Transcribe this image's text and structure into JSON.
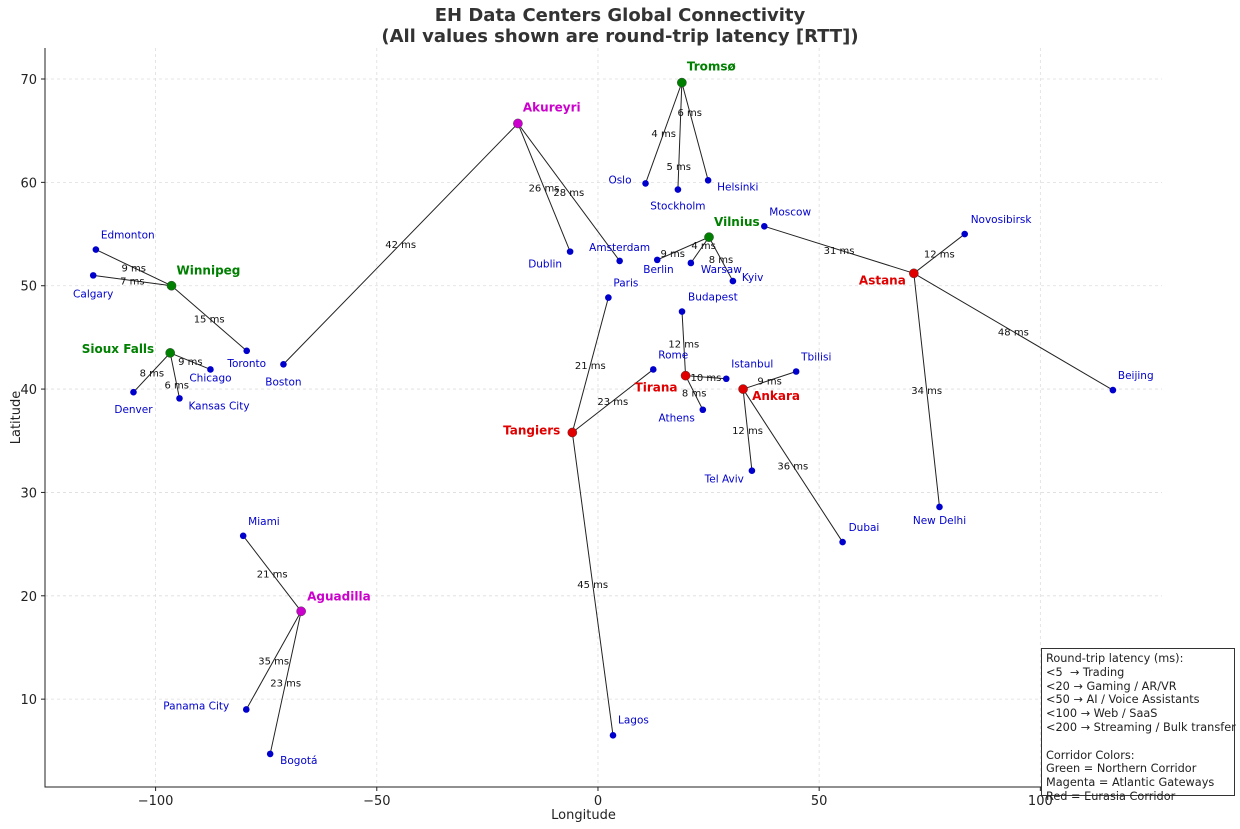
{
  "chart_data": {
    "type": "scatter",
    "title_line1": "EH Data Centers Global Connectivity",
    "title_line2": "(All values shown are round-trip latency [RTT])",
    "xlabel": "Longitude",
    "ylabel": "Latitude",
    "xlim": [
      -125,
      127.5
    ],
    "ylim": [
      1.5,
      73
    ],
    "xticks": [
      -100,
      -50,
      0,
      50,
      100
    ],
    "xtick_labels": [
      "−100",
      "−50",
      "0",
      "50",
      "100"
    ],
    "yticks": [
      10,
      20,
      30,
      40,
      50,
      60,
      70
    ],
    "ytick_labels": [
      "10",
      "20",
      "30",
      "40",
      "50",
      "60",
      "70"
    ],
    "grid": true,
    "colors": {
      "Northern Corridor": "#008000",
      "Atlantic Gateways": "#cc00cc",
      "Eurasia Corridor": "#e00000",
      "leaf": "#0000cc",
      "edge": "#222222"
    },
    "hubs": [
      {
        "name": "Tromsø",
        "lon": 18.96,
        "lat": 69.65,
        "corridor": "Northern Corridor"
      },
      {
        "name": "Vilnius",
        "lon": 25.1,
        "lat": 54.7,
        "corridor": "Northern Corridor"
      },
      {
        "name": "Winnipeg",
        "lon": -96.4,
        "lat": 50.0,
        "corridor": "Northern Corridor"
      },
      {
        "name": "Sioux Falls",
        "lon": -96.7,
        "lat": 43.5,
        "corridor": "Northern Corridor"
      },
      {
        "name": "Akureyri",
        "lon": -18.1,
        "lat": 65.7,
        "corridor": "Atlantic Gateways"
      },
      {
        "name": "Aguadilla",
        "lon": -67.1,
        "lat": 18.5,
        "corridor": "Atlantic Gateways"
      },
      {
        "name": "Astana",
        "lon": 71.4,
        "lat": 51.2,
        "corridor": "Eurasia Corridor"
      },
      {
        "name": "Tirana",
        "lon": 19.8,
        "lat": 41.3,
        "corridor": "Eurasia Corridor"
      },
      {
        "name": "Ankara",
        "lon": 32.8,
        "lat": 40.0,
        "corridor": "Eurasia Corridor"
      },
      {
        "name": "Tangiers",
        "lon": -5.8,
        "lat": 35.8,
        "corridor": "Eurasia Corridor"
      }
    ],
    "cities": [
      {
        "name": "Oslo",
        "lon": 10.75,
        "lat": 59.9
      },
      {
        "name": "Stockholm",
        "lon": 18.07,
        "lat": 59.3
      },
      {
        "name": "Helsinki",
        "lon": 24.9,
        "lat": 60.2
      },
      {
        "name": "Dublin",
        "lon": -6.3,
        "lat": 53.3
      },
      {
        "name": "Amsterdam",
        "lon": 4.9,
        "lat": 52.4
      },
      {
        "name": "Paris",
        "lon": 2.35,
        "lat": 48.85
      },
      {
        "name": "Berlin",
        "lon": 13.4,
        "lat": 52.5
      },
      {
        "name": "Warsaw",
        "lon": 21.0,
        "lat": 52.2
      },
      {
        "name": "Kyiv",
        "lon": 30.5,
        "lat": 50.45
      },
      {
        "name": "Moscow",
        "lon": 37.6,
        "lat": 55.75
      },
      {
        "name": "Novosibirsk",
        "lon": 82.9,
        "lat": 55.0
      },
      {
        "name": "Beijing",
        "lon": 116.4,
        "lat": 39.9
      },
      {
        "name": "New Delhi",
        "lon": 77.2,
        "lat": 28.6
      },
      {
        "name": "Budapest",
        "lon": 19.0,
        "lat": 47.5
      },
      {
        "name": "Rome",
        "lon": 12.5,
        "lat": 41.9
      },
      {
        "name": "Istanbul",
        "lon": 29.0,
        "lat": 41.0
      },
      {
        "name": "Athens",
        "lon": 23.7,
        "lat": 38.0
      },
      {
        "name": "Tbilisi",
        "lon": 44.8,
        "lat": 41.7
      },
      {
        "name": "Tel Aviv",
        "lon": 34.8,
        "lat": 32.1
      },
      {
        "name": "Dubai",
        "lon": 55.3,
        "lat": 25.2
      },
      {
        "name": "Lagos",
        "lon": 3.4,
        "lat": 6.5
      },
      {
        "name": "Edmonton",
        "lon": -113.5,
        "lat": 53.5
      },
      {
        "name": "Calgary",
        "lon": -114.1,
        "lat": 51.0
      },
      {
        "name": "Toronto",
        "lon": -79.4,
        "lat": 43.7
      },
      {
        "name": "Chicago",
        "lon": -87.6,
        "lat": 41.9
      },
      {
        "name": "Denver",
        "lon": -105.0,
        "lat": 39.7
      },
      {
        "name": "Kansas City",
        "lon": -94.6,
        "lat": 39.1
      },
      {
        "name": "Boston",
        "lon": -71.1,
        "lat": 42.4
      },
      {
        "name": "Miami",
        "lon": -80.2,
        "lat": 25.8
      },
      {
        "name": "Panama City",
        "lon": -79.5,
        "lat": 9.0
      },
      {
        "name": "Bogotá",
        "lon": -74.1,
        "lat": 4.7
      }
    ],
    "links": [
      {
        "from": "Tromsø",
        "to": "Oslo",
        "rtt_ms": 4
      },
      {
        "from": "Tromsø",
        "to": "Stockholm",
        "rtt_ms": 5
      },
      {
        "from": "Tromsø",
        "to": "Helsinki",
        "rtt_ms": 6
      },
      {
        "from": "Akureyri",
        "to": "Dublin",
        "rtt_ms": 26
      },
      {
        "from": "Akureyri",
        "to": "Amsterdam",
        "rtt_ms": 28
      },
      {
        "from": "Akureyri",
        "to": "Boston",
        "rtt_ms": 42
      },
      {
        "from": "Vilnius",
        "to": "Berlin",
        "rtt_ms": 9
      },
      {
        "from": "Vilnius",
        "to": "Warsaw",
        "rtt_ms": 4
      },
      {
        "from": "Vilnius",
        "to": "Kyiv",
        "rtt_ms": 8
      },
      {
        "from": "Winnipeg",
        "to": "Edmonton",
        "rtt_ms": 9
      },
      {
        "from": "Winnipeg",
        "to": "Calgary",
        "rtt_ms": 7
      },
      {
        "from": "Winnipeg",
        "to": "Toronto",
        "rtt_ms": 15
      },
      {
        "from": "Sioux Falls",
        "to": "Denver",
        "rtt_ms": 8
      },
      {
        "from": "Sioux Falls",
        "to": "Kansas City",
        "rtt_ms": 6
      },
      {
        "from": "Sioux Falls",
        "to": "Chicago",
        "rtt_ms": 9
      },
      {
        "from": "Astana",
        "to": "Moscow",
        "rtt_ms": 31
      },
      {
        "from": "Astana",
        "to": "Novosibirsk",
        "rtt_ms": 12
      },
      {
        "from": "Astana",
        "to": "Beijing",
        "rtt_ms": 48
      },
      {
        "from": "Astana",
        "to": "New Delhi",
        "rtt_ms": 34
      },
      {
        "from": "Tirana",
        "to": "Budapest",
        "rtt_ms": 12
      },
      {
        "from": "Tirana",
        "to": "Istanbul",
        "rtt_ms": 10
      },
      {
        "from": "Tirana",
        "to": "Athens",
        "rtt_ms": 8
      },
      {
        "from": "Ankara",
        "to": "Tbilisi",
        "rtt_ms": 9
      },
      {
        "from": "Ankara",
        "to": "Tel Aviv",
        "rtt_ms": 12
      },
      {
        "from": "Ankara",
        "to": "Dubai",
        "rtt_ms": 36
      },
      {
        "from": "Tangiers",
        "to": "Paris",
        "rtt_ms": 21
      },
      {
        "from": "Tangiers",
        "to": "Rome",
        "rtt_ms": 23
      },
      {
        "from": "Tangiers",
        "to": "Lagos",
        "rtt_ms": 45
      },
      {
        "from": "Aguadilla",
        "to": "Miami",
        "rtt_ms": 21
      },
      {
        "from": "Aguadilla",
        "to": "Panama City",
        "rtt_ms": 35
      },
      {
        "from": "Aguadilla",
        "to": "Bogotá",
        "rtt_ms": 23
      }
    ],
    "link_label_suffix": " ms",
    "legend": {
      "placement": "lower-right",
      "lines": [
        "Round-trip latency (ms):",
        "<5  → Trading",
        "<20 → Gaming / AR/VR",
        "<50 → AI / Voice Assistants",
        "<100 → Web / SaaS",
        "<200 → Streaming / Bulk transfer",
        "",
        "Corridor Colors:",
        "Green = Northern Corridor",
        "Magenta = Atlantic Gateways",
        "Red = Eurasia Corridor"
      ]
    }
  }
}
